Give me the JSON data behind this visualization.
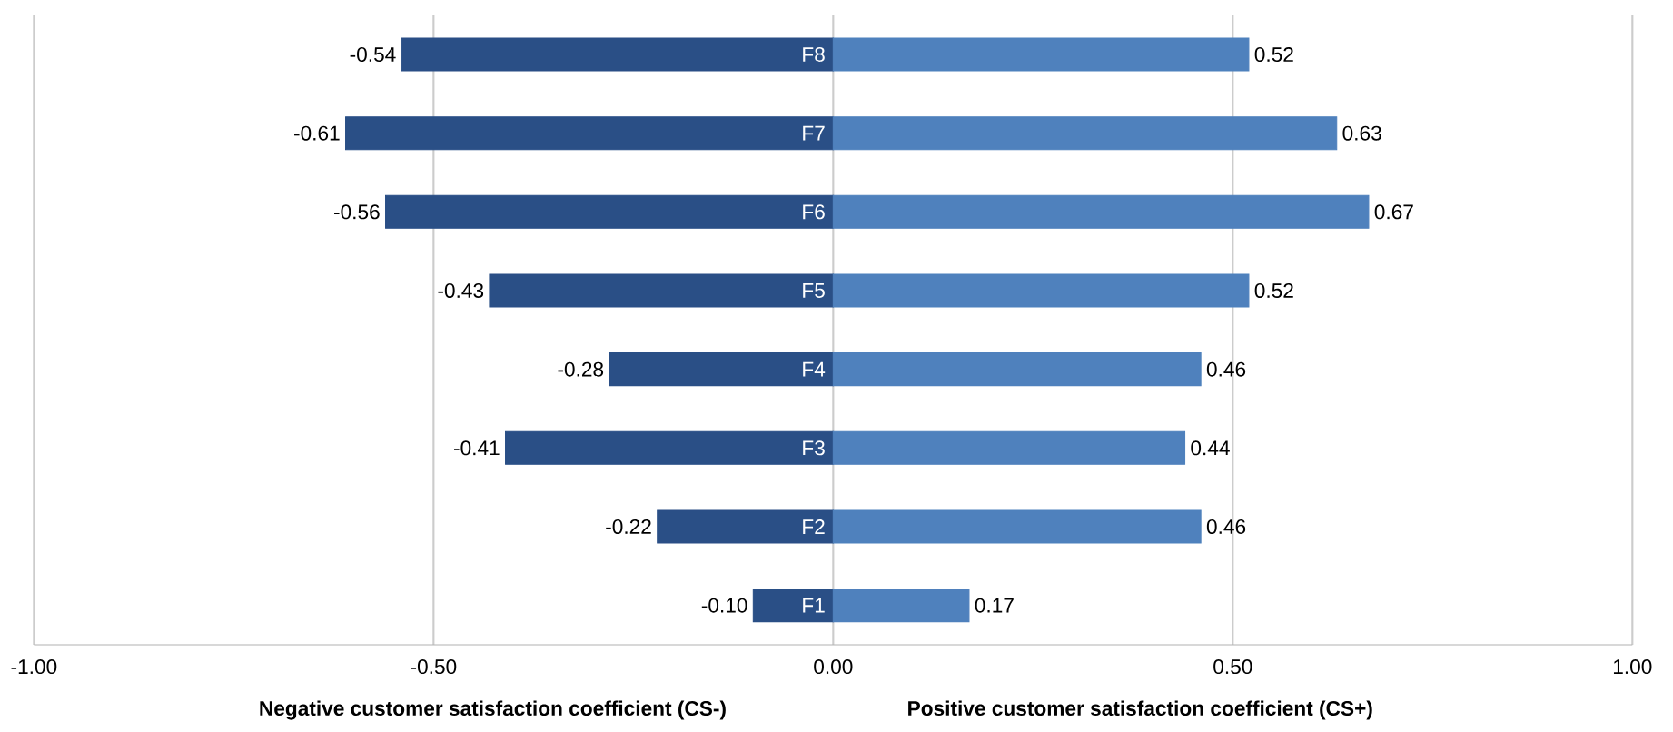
{
  "chart_data": {
    "type": "bar",
    "orientation": "horizontal",
    "stacked": true,
    "categories": [
      "F8",
      "F7",
      "F6",
      "F5",
      "F4",
      "F3",
      "F2",
      "F1"
    ],
    "series": [
      {
        "color": "#2a4f86",
        "values": [
          -0.54,
          -0.61,
          -0.56,
          -0.43,
          -0.28,
          -0.41,
          -0.22,
          -0.1
        ],
        "value_labels": [
          "-0.54",
          "-0.61",
          "-0.56",
          "-0.43",
          "-0.28",
          "-0.41",
          "-0.22",
          "-0.10"
        ]
      },
      {
        "color": "#4f81bd",
        "values": [
          0.52,
          0.63,
          0.67,
          0.52,
          0.46,
          0.44,
          0.46,
          0.17
        ],
        "value_labels": [
          "0.52",
          "0.63",
          "0.67",
          "0.52",
          "0.46",
          "0.44",
          "0.46",
          "0.17"
        ]
      }
    ],
    "xlim": [
      -1,
      1
    ],
    "xticks": [
      {
        "value": -1,
        "label": "-1.00"
      },
      {
        "value": -0.5,
        "label": "-0.50"
      },
      {
        "value": 0,
        "label": "0.00"
      },
      {
        "value": 0.5,
        "label": "0.50"
      },
      {
        "value": 1,
        "label": "1.00"
      }
    ],
    "grid": "x",
    "annotations": [
      "Negative customer satisfaction coefficient (CS-)",
      "Positive customer satisfaction coefficient (CS+)"
    ]
  }
}
